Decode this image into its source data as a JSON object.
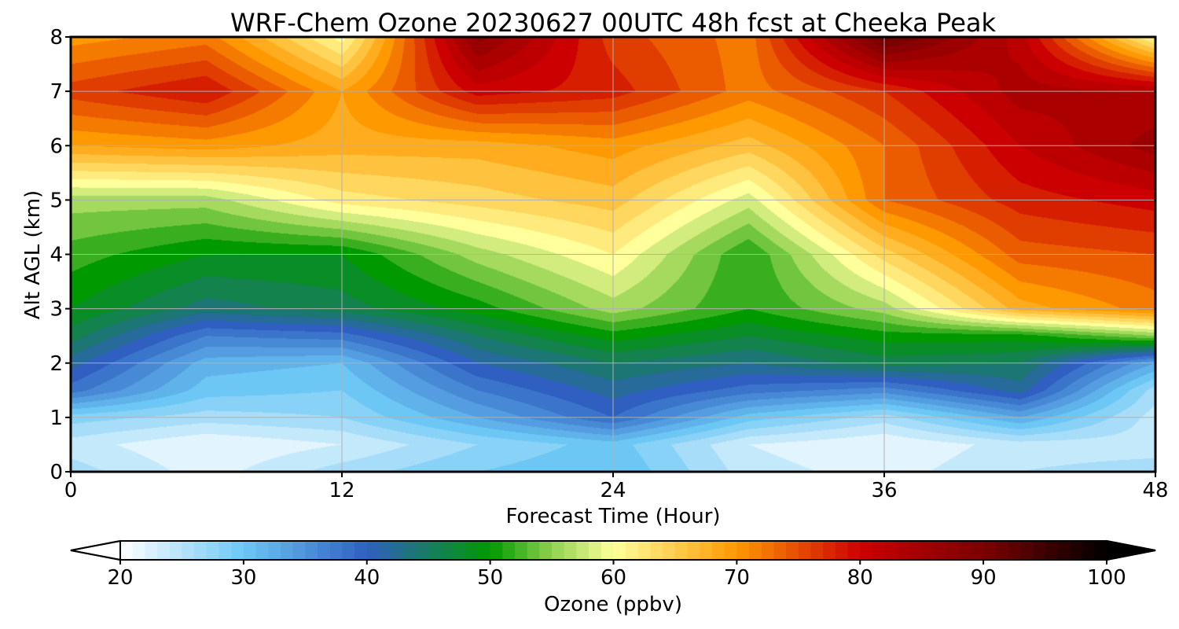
{
  "chart_data": {
    "type": "heatmap",
    "title": "WRF-Chem Ozone  20230627 00UTC 48h fcst at Cheeka Peak",
    "xlabel": "Forecast Time (Hour)",
    "ylabel": "Alt AGL (km)",
    "xlim": [
      0,
      48
    ],
    "ylim": [
      0,
      8
    ],
    "x_ticks": [
      "0",
      "12",
      "24",
      "36",
      "48"
    ],
    "y_ticks": [
      "0",
      "1",
      "2",
      "3",
      "4",
      "5",
      "6",
      "7",
      "8"
    ],
    "grid": true,
    "x": [
      0,
      6,
      12,
      18,
      24,
      30,
      36,
      42,
      48
    ],
    "y": [
      0,
      0.5,
      1,
      1.5,
      2,
      2.5,
      3,
      4,
      5,
      6,
      7,
      8
    ],
    "values": [
      [
        26,
        22,
        26,
        29,
        31,
        24,
        22,
        25,
        26
      ],
      [
        24,
        21,
        23,
        27,
        30,
        23,
        21,
        24,
        24
      ],
      [
        28,
        26,
        27,
        33,
        39,
        30,
        26,
        33,
        24
      ],
      [
        38,
        30,
        29,
        37,
        42,
        38,
        36,
        42,
        26
      ],
      [
        42,
        32,
        31,
        41,
        45,
        43,
        46,
        45,
        33
      ],
      [
        46,
        37,
        38,
        45,
        50,
        47,
        50,
        50,
        55
      ],
      [
        49,
        44,
        46,
        50,
        56,
        51,
        56,
        68,
        72
      ],
      [
        52,
        49,
        49,
        56,
        61,
        51,
        64,
        74,
        75
      ],
      [
        56,
        56,
        62,
        64,
        66,
        58,
        73,
        78,
        80
      ],
      [
        69,
        70,
        68,
        68,
        70,
        66,
        73,
        81,
        86
      ],
      [
        76,
        79,
        69,
        80,
        78,
        72,
        77,
        84,
        83
      ],
      [
        70,
        72,
        60,
        88,
        76,
        72,
        92,
        82,
        60
      ]
    ],
    "colorbar": {
      "label": "Ozone  (ppbv)",
      "min": 20,
      "max": 100,
      "ticks": [
        "20",
        "30",
        "40",
        "50",
        "60",
        "70",
        "80",
        "90",
        "100"
      ],
      "extend": "both",
      "color_stops": [
        {
          "value": 20,
          "color": "#ffffff"
        },
        {
          "value": 30,
          "color": "#6cc7f5"
        },
        {
          "value": 40,
          "color": "#2f5fc0"
        },
        {
          "value": 50,
          "color": "#009900"
        },
        {
          "value": 55,
          "color": "#8fd14f"
        },
        {
          "value": 60,
          "color": "#ffff9c"
        },
        {
          "value": 70,
          "color": "#ff9900"
        },
        {
          "value": 80,
          "color": "#cc0000"
        },
        {
          "value": 90,
          "color": "#7a0000"
        },
        {
          "value": 100,
          "color": "#000000"
        }
      ]
    }
  }
}
